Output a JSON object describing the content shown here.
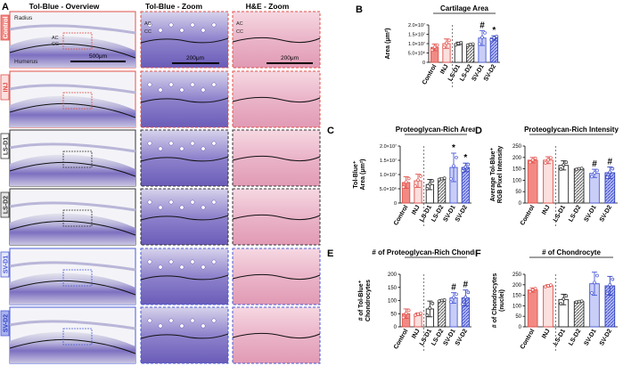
{
  "panel_letters": {
    "a": "A",
    "b": "B",
    "c": "C",
    "d": "D",
    "e": "E",
    "f": "F"
  },
  "histology": {
    "column_titles": [
      "Tol-Blue - Overview",
      "Tol-Blue - Zoom",
      "H&E - Zoom"
    ],
    "rows": [
      {
        "label": "Control",
        "color": "#e0504a",
        "fill": "#f28a84",
        "text_color": "#ffffff"
      },
      {
        "label": "INJ",
        "color": "#e0504a",
        "fill": "#fbe0de",
        "text_color": "#e0504a"
      },
      {
        "label": "LS-D1",
        "color": "#333333",
        "fill": "#ffffff",
        "text_color": "#333333"
      },
      {
        "label": "LS-D2",
        "color": "#333333",
        "fill": "#e6e6e6",
        "text_color": "#333333"
      },
      {
        "label": "SV-D1",
        "color": "#4a5ad6",
        "fill": "#e3e6fb",
        "text_color": "#4a5ad6"
      },
      {
        "label": "SV-D2",
        "color": "#4a5ad6",
        "fill": "#aab2ef",
        "text_color": "#3040c0"
      }
    ],
    "overview_labels": {
      "radius": "Radius",
      "humerus": "Humerus",
      "ac": "AC",
      "cc": "CC"
    },
    "scale_bars": {
      "overview": "500μm",
      "zoom": "200μm",
      "he": "200μm"
    }
  },
  "chart_data": [
    {
      "id": "B",
      "type": "bar",
      "title": "Cartilage Area",
      "ylabel": "Area (μm²)",
      "yscale": "linear",
      "ylim": [
        0,
        20000000
      ],
      "yticks": [
        0,
        5000000,
        10000000,
        15000000,
        20000000
      ],
      "ytick_labels": [
        "0",
        "5.0×10⁶",
        "1.0×10⁷",
        "1.5×10⁷",
        "2.0×10⁷"
      ],
      "categories": [
        "Control",
        "INJ",
        "LS-D1",
        "LS-D2",
        "SV-D1",
        "SV-D2"
      ],
      "values": [
        8000000,
        10000000,
        10000000,
        9500000,
        13000000,
        13000000
      ],
      "errors": [
        1800000,
        2500000,
        800000,
        400000,
        4000000,
        1200000
      ],
      "annotations": [
        "",
        "",
        "",
        "",
        "#",
        "*"
      ]
    },
    {
      "id": "C",
      "type": "bar",
      "title": "Proteoglycan-Rich Area",
      "ylabel": "Tol-Blue⁺ Area (μm²)",
      "yscale": "linear",
      "ylim": [
        0,
        20000000
      ],
      "yticks": [
        0,
        5000000,
        10000000,
        15000000,
        20000000
      ],
      "ytick_labels": [
        "0",
        "5.0×10⁶",
        "1.0×10⁷",
        "1.5×10⁷",
        "2.0×10⁷"
      ],
      "categories": [
        "Control",
        "INJ",
        "LS-D1",
        "LS-D2",
        "SV-D1",
        "SV-D2"
      ],
      "values": [
        7200000,
        7800000,
        6500000,
        8500000,
        12500000,
        12500000
      ],
      "errors": [
        2000000,
        2300000,
        1800000,
        300000,
        5000000,
        1500000
      ],
      "annotations": [
        "",
        "",
        "",
        "",
        "*",
        "*"
      ]
    },
    {
      "id": "D",
      "type": "bar",
      "title": "Proteoglycan-Rich Intensity",
      "ylabel": "Average Tol-Blue⁺ RGB Pixel Intensity",
      "yscale": "linear",
      "ylim": [
        0,
        250
      ],
      "yticks": [
        0,
        50,
        100,
        150,
        200,
        250
      ],
      "ytick_labels": [
        "0",
        "50",
        "100",
        "150",
        "200",
        "250"
      ],
      "categories": [
        "Control",
        "INJ",
        "LS-D1",
        "LS-D2",
        "SV-D1",
        "SV-D2"
      ],
      "values": [
        188,
        188,
        165,
        150,
        130,
        133
      ],
      "errors": [
        12,
        15,
        20,
        3,
        18,
        25
      ],
      "annotations": [
        "",
        "",
        "",
        "",
        "#",
        "#"
      ]
    },
    {
      "id": "E",
      "type": "bar",
      "title": "# of Proteoglycan-Rich Chondrocytes",
      "ylabel": "# of Tol-Blue⁺ Chondrocytes",
      "yscale": "linear",
      "ylim": [
        0,
        200
      ],
      "yticks": [
        0,
        50,
        100,
        150,
        200
      ],
      "ytick_labels": [
        "0",
        "50",
        "100",
        "150",
        "200"
      ],
      "categories": [
        "Control",
        "INJ",
        "LS-D1",
        "LS-D2",
        "SV-D1",
        "SV-D2"
      ],
      "values": [
        50,
        48,
        68,
        100,
        110,
        110
      ],
      "errors": [
        18,
        5,
        30,
        3,
        20,
        30
      ],
      "annotations": [
        "",
        "",
        "",
        "",
        "#",
        "#"
      ]
    },
    {
      "id": "F",
      "type": "bar",
      "title": "# of Chondrocyte",
      "ylabel": "# of Chondrocytes (nuclei)",
      "yscale": "linear",
      "ylim": [
        0,
        250
      ],
      "yticks": [
        0,
        50,
        100,
        150,
        200,
        250
      ],
      "ytick_labels": [
        "0",
        "50",
        "100",
        "150",
        "200",
        "250"
      ],
      "categories": [
        "Control",
        "INJ",
        "LS-D1",
        "LS-D2",
        "SV-D1",
        "SV-D2"
      ],
      "values": [
        175,
        195,
        130,
        120,
        205,
        195
      ],
      "errors": [
        10,
        5,
        25,
        3,
        55,
        45
      ],
      "annotations": [
        "",
        "",
        "",
        "",
        "",
        ""
      ]
    }
  ]
}
